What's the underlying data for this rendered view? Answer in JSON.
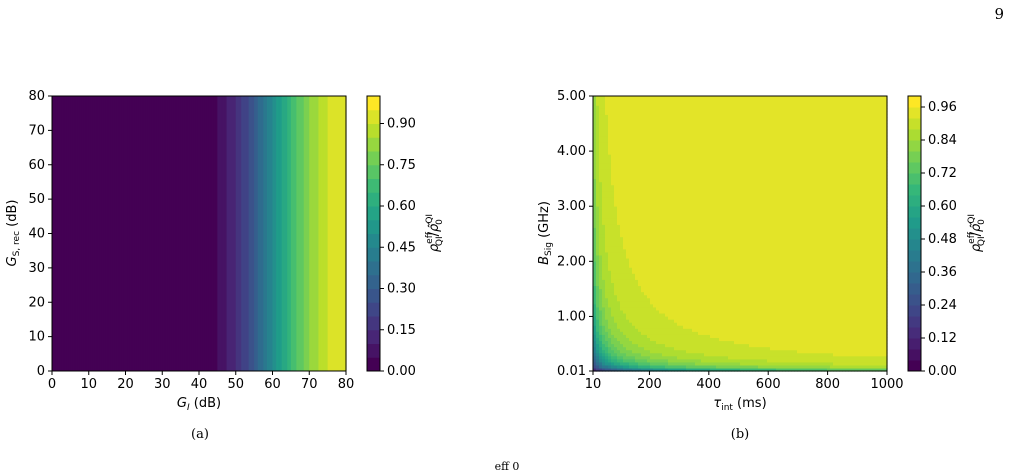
{
  "page_number": "9",
  "figure_caption_fragment": "eff   0",
  "chart_data": [
    {
      "type": "heatmap",
      "panel_label": "(a)",
      "xlabel": "G_I (dB)",
      "ylabel": "G_S,rec (dB)",
      "colorbar_label": "ρ_QI^eff / ρ̃_0^QI",
      "xlim": [
        0,
        80
      ],
      "ylim": [
        0,
        80
      ],
      "xticks": [
        "0",
        "10",
        "20",
        "30",
        "40",
        "50",
        "60",
        "70",
        "80"
      ],
      "yticks": [
        "0",
        "10",
        "20",
        "30",
        "40",
        "50",
        "60",
        "70",
        "80"
      ],
      "colorbar_range": [
        0,
        1
      ],
      "colorbar_ticks": [
        "0.00",
        "0.15",
        "0.30",
        "0.45",
        "0.60",
        "0.75",
        "0.90"
      ],
      "value_function": "depends only on x (G_I); ~0 up to 40 dB then rises to ~1 at 80 dB",
      "x_samples": [
        0,
        40,
        45,
        50,
        55,
        60,
        65,
        70,
        75,
        80
      ],
      "value_samples": [
        0.0,
        0.0,
        0.05,
        0.15,
        0.3,
        0.5,
        0.7,
        0.85,
        0.95,
        1.0
      ],
      "colormap": "viridis"
    },
    {
      "type": "heatmap",
      "panel_label": "(b)",
      "xlabel": "τ_int (ms)",
      "ylabel": "B_Sig (GHz)",
      "colorbar_label": "ρ_QI^eff / ρ̃_0^QI",
      "xlim": [
        10,
        1000
      ],
      "ylim": [
        0.01,
        5.0
      ],
      "xticks": [
        "10",
        "200",
        "400",
        "600",
        "800",
        "1000"
      ],
      "yticks": [
        "0.01",
        "1.00",
        "2.00",
        "3.00",
        "4.00",
        "5.00"
      ],
      "colorbar_range": [
        0,
        1
      ],
      "colorbar_ticks": [
        "0.00",
        "0.12",
        "0.24",
        "0.36",
        "0.48",
        "0.60",
        "0.72",
        "0.84",
        "0.96"
      ],
      "value_function": "increases with product τ_int × B_Sig; saturates near 1 for large products",
      "colormap": "viridis"
    }
  ]
}
